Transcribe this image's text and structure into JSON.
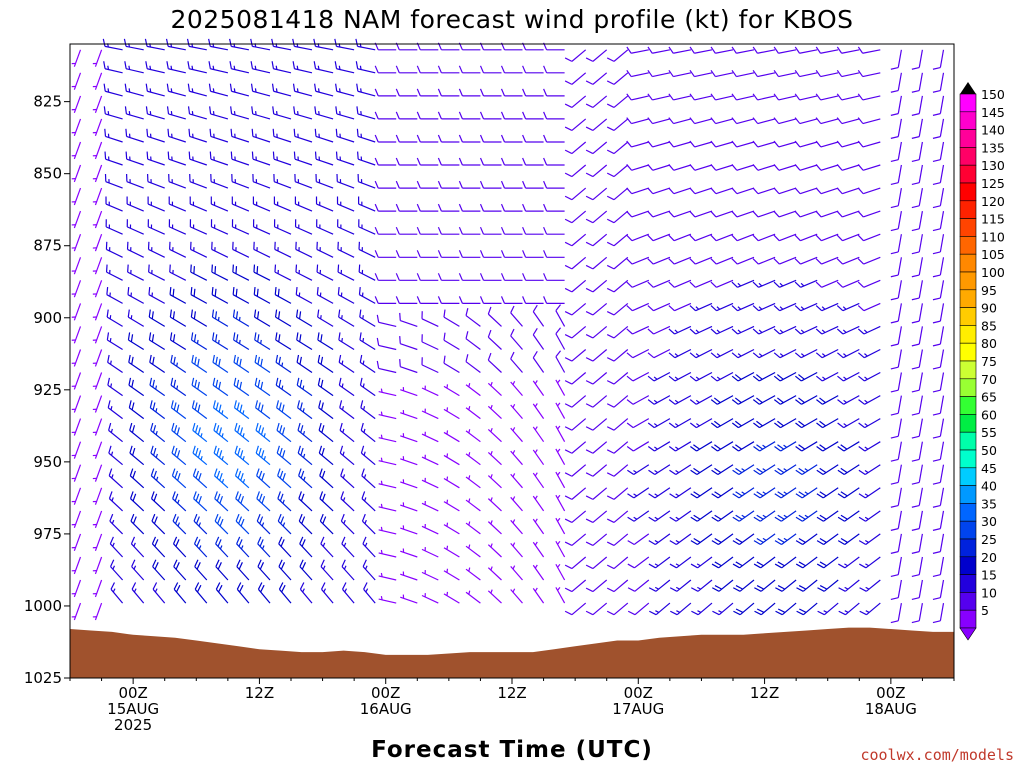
{
  "chart_data": {
    "type": "wind_barb_time_height",
    "title": "2025081418 NAM forecast wind profile (kt) for KBOS",
    "xlabel": "Forecast Time (UTC)",
    "y_ticks": [
      "825",
      "850",
      "875",
      "900",
      "925",
      "950",
      "975",
      "1000",
      "1025"
    ],
    "x_ticks": [
      {
        "hour": "00Z",
        "date": "15AUG",
        "year": "2025",
        "fh": 6
      },
      {
        "hour": "12Z",
        "date": "",
        "year": "",
        "fh": 18
      },
      {
        "hour": "00Z",
        "date": "16AUG",
        "year": "",
        "fh": 30
      },
      {
        "hour": "12Z",
        "date": "",
        "year": "",
        "fh": 42
      },
      {
        "hour": "00Z",
        "date": "17AUG",
        "year": "",
        "fh": 54
      },
      {
        "hour": "12Z",
        "date": "",
        "year": "",
        "fh": 66
      },
      {
        "hour": "00Z",
        "date": "18AUG",
        "year": "",
        "fh": 78
      }
    ],
    "x_range_hours": [
      0,
      84
    ],
    "y_range_hpa": [
      805,
      1025
    ],
    "colorbar": {
      "levels": [
        "150",
        "145",
        "140",
        "135",
        "130",
        "125",
        "120",
        "115",
        "110",
        "105",
        "100",
        "95",
        "90",
        "85",
        "80",
        "75",
        "70",
        "65",
        "60",
        "55",
        "50",
        "45",
        "40",
        "35",
        "30",
        "25",
        "20",
        "15",
        "10",
        "5"
      ],
      "colors": [
        "#ff00ff",
        "#ff00cc",
        "#ff0099",
        "#ff0066",
        "#ff0033",
        "#ff0000",
        "#ff2200",
        "#ff4400",
        "#ff6600",
        "#ff8800",
        "#ff9900",
        "#ffaa00",
        "#ffcc00",
        "#ffee00",
        "#ffff00",
        "#ccff33",
        "#99ff33",
        "#33ff33",
        "#00ee44",
        "#00ffaa",
        "#00ffcc",
        "#00ccff",
        "#0099ff",
        "#0066ff",
        "#0044ee",
        "#0022dd",
        "#0000cc",
        "#2200dd",
        "#5500ee",
        "#8800ff"
      ]
    },
    "surface_pressure": [
      {
        "fh": 0,
        "p": 1008
      },
      {
        "fh": 2,
        "p": 1008.5
      },
      {
        "fh": 4,
        "p": 1009
      },
      {
        "fh": 6,
        "p": 1010
      },
      {
        "fh": 8,
        "p": 1010.5
      },
      {
        "fh": 10,
        "p": 1011
      },
      {
        "fh": 12,
        "p": 1012
      },
      {
        "fh": 14,
        "p": 1013
      },
      {
        "fh": 16,
        "p": 1014
      },
      {
        "fh": 18,
        "p": 1015
      },
      {
        "fh": 20,
        "p": 1015.5
      },
      {
        "fh": 22,
        "p": 1016
      },
      {
        "fh": 24,
        "p": 1016
      },
      {
        "fh": 26,
        "p": 1015.5
      },
      {
        "fh": 28,
        "p": 1016
      },
      {
        "fh": 30,
        "p": 1017
      },
      {
        "fh": 32,
        "p": 1017
      },
      {
        "fh": 34,
        "p": 1017
      },
      {
        "fh": 36,
        "p": 1016.5
      },
      {
        "fh": 38,
        "p": 1016
      },
      {
        "fh": 40,
        "p": 1016
      },
      {
        "fh": 42,
        "p": 1016
      },
      {
        "fh": 44,
        "p": 1016
      },
      {
        "fh": 46,
        "p": 1015
      },
      {
        "fh": 48,
        "p": 1014
      },
      {
        "fh": 50,
        "p": 1013
      },
      {
        "fh": 52,
        "p": 1012
      },
      {
        "fh": 54,
        "p": 1012
      },
      {
        "fh": 56,
        "p": 1011
      },
      {
        "fh": 58,
        "p": 1010.5
      },
      {
        "fh": 60,
        "p": 1010
      },
      {
        "fh": 62,
        "p": 1010
      },
      {
        "fh": 64,
        "p": 1010
      },
      {
        "fh": 66,
        "p": 1009.5
      },
      {
        "fh": 68,
        "p": 1009
      },
      {
        "fh": 70,
        "p": 1008.5
      },
      {
        "fh": 72,
        "p": 1008
      },
      {
        "fh": 74,
        "p": 1007.5
      },
      {
        "fh": 76,
        "p": 1007.5
      },
      {
        "fh": 78,
        "p": 1008
      },
      {
        "fh": 80,
        "p": 1008.5
      },
      {
        "fh": 82,
        "p": 1009
      },
      {
        "fh": 84,
        "p": 1009
      }
    ],
    "surface_color": "#a0522d",
    "barb_series": {
      "times_fh_start": 1,
      "times_fh_step": 2,
      "times_count": 42,
      "levels_hpa_start": 807,
      "levels_hpa_step": 8,
      "levels_count": 25,
      "note": "wind speed (kt) and direction (deg from) per time/level"
    }
  },
  "credit": "coolwx.com/models"
}
